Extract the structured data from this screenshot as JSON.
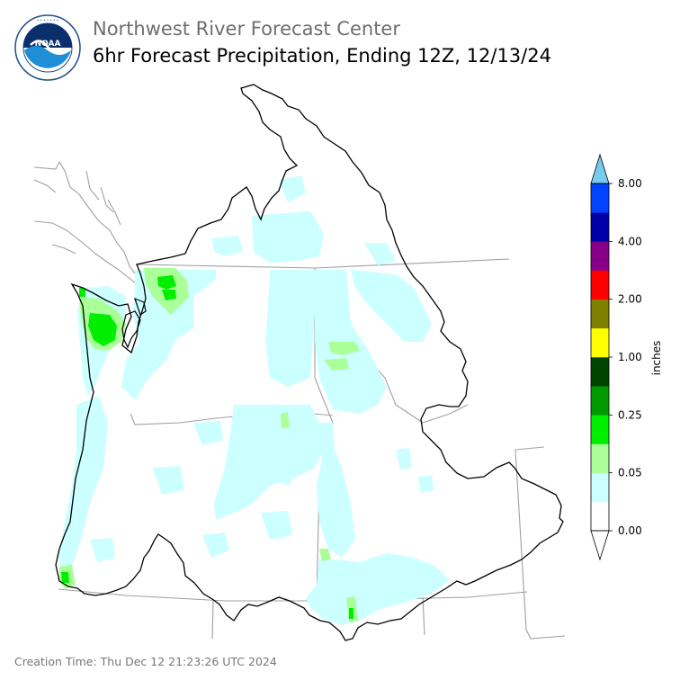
{
  "header": {
    "title": "Northwest River Forecast Center",
    "subtitle": "6hr Forecast Precipitation, Ending 12Z, 12/13/24"
  },
  "logo": {
    "text": "NOAA",
    "icon": "noaa-logo-icon"
  },
  "legend": {
    "unit_label": "inches",
    "bins": [
      {
        "color": "#ffffff"
      },
      {
        "color": "#ccffff"
      },
      {
        "color": "#aaff99"
      },
      {
        "color": "#00ee00"
      },
      {
        "color": "#009900"
      },
      {
        "color": "#004400"
      },
      {
        "color": "#ffff00"
      },
      {
        "color": "#7f7f00"
      },
      {
        "color": "#ff0000"
      },
      {
        "color": "#880088"
      },
      {
        "color": "#0000aa"
      },
      {
        "color": "#0044ff"
      }
    ],
    "over_color": "#77ccee",
    "under_color": "#ffffff",
    "tick_labels": [
      "0.00",
      "0.05",
      "0.25",
      "1.00",
      "2.00",
      "4.00",
      "8.00"
    ]
  },
  "footer": {
    "creation_time": "Creation Time: Thu Dec 12 21:23:26 UTC 2024"
  }
}
